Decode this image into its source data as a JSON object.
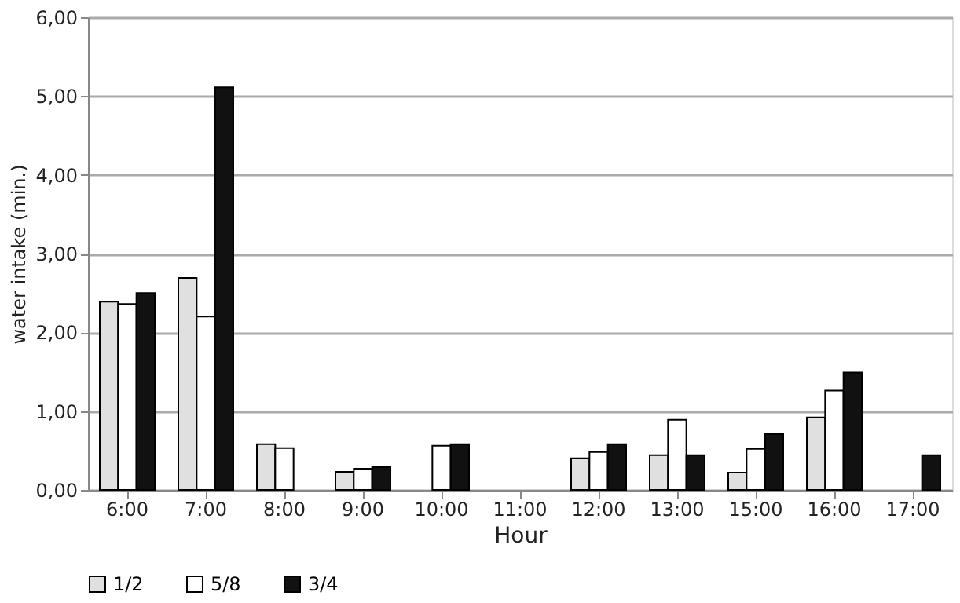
{
  "chart_data": {
    "type": "bar",
    "xlabel": "Hour",
    "ylabel": "water intake (min.)",
    "categories": [
      "6:00",
      "7:00",
      "8:00",
      "9:00",
      "10:00",
      "11:00",
      "12:00",
      "13:00",
      "15:00",
      "16:00",
      "17:00"
    ],
    "series": [
      {
        "name": "1/2",
        "color": "#e0e0e0",
        "values": [
          2.39,
          2.69,
          0.58,
          0.23,
          null,
          null,
          0.4,
          0.44,
          0.22,
          0.92,
          null
        ]
      },
      {
        "name": "5/8",
        "color": "#ffffff",
        "values": [
          2.36,
          2.2,
          0.53,
          0.27,
          0.56,
          null,
          0.48,
          0.89,
          0.52,
          1.26,
          null
        ]
      },
      {
        "name": "3/4",
        "color": "#111111",
        "values": [
          2.5,
          5.11,
          null,
          0.29,
          0.58,
          null,
          0.58,
          0.44,
          0.71,
          1.49,
          0.44
        ]
      }
    ],
    "ylim": [
      0,
      6
    ],
    "yticks": [
      {
        "value": 0,
        "label": "0,00"
      },
      {
        "value": 1,
        "label": "1,00"
      },
      {
        "value": 2,
        "label": "2,00"
      },
      {
        "value": 3,
        "label": "3,00"
      },
      {
        "value": 4,
        "label": "4,00"
      },
      {
        "value": 5,
        "label": "5,00"
      },
      {
        "value": 6,
        "label": "6,00"
      }
    ],
    "grid": "y",
    "legend": "bottom"
  }
}
